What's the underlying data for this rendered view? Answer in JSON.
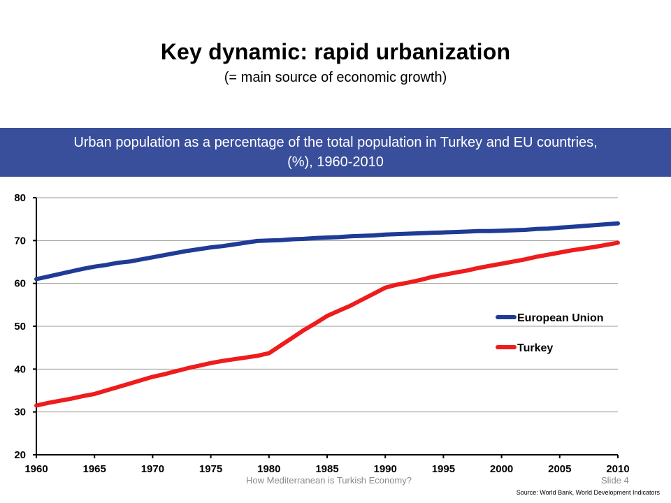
{
  "slide": {
    "title": "Key dynamic: rapid urbanization",
    "subtitle": "(= main source of economic growth)",
    "banner_line1": "Urban population as a percentage of the total population in Turkey and EU countries,",
    "banner_line2": "(%), 1960-2010",
    "footer_text": "How Mediterranean is Turkish Economy?",
    "slide_number": "Slide 4",
    "source": "Source: World Bank, World Development Indicators"
  },
  "chart_data": {
    "type": "line",
    "title": "",
    "xlabel": "",
    "ylabel": "",
    "xlim": [
      1960,
      2010
    ],
    "ylim": [
      20,
      80
    ],
    "y_ticks": [
      20,
      30,
      40,
      50,
      60,
      70,
      80
    ],
    "x_ticks": [
      1960,
      1965,
      1970,
      1975,
      1980,
      1985,
      1990,
      1995,
      2000,
      2005,
      2010
    ],
    "grid": "horizontal",
    "legend_position": "right",
    "x": [
      1960,
      1961,
      1962,
      1963,
      1964,
      1965,
      1966,
      1967,
      1968,
      1969,
      1970,
      1971,
      1972,
      1973,
      1974,
      1975,
      1976,
      1977,
      1978,
      1979,
      1980,
      1981,
      1982,
      1983,
      1984,
      1985,
      1986,
      1987,
      1988,
      1989,
      1990,
      1991,
      1992,
      1993,
      1994,
      1995,
      1996,
      1997,
      1998,
      1999,
      2000,
      2001,
      2002,
      2003,
      2004,
      2005,
      2006,
      2007,
      2008,
      2009,
      2010
    ],
    "series": [
      {
        "name": "European Union",
        "color": "#1f3b96",
        "values": [
          61.0,
          61.6,
          62.2,
          62.8,
          63.4,
          63.9,
          64.3,
          64.8,
          65.1,
          65.6,
          66.1,
          66.6,
          67.1,
          67.6,
          68.0,
          68.4,
          68.7,
          69.1,
          69.5,
          69.9,
          70.0,
          70.1,
          70.3,
          70.4,
          70.6,
          70.7,
          70.8,
          71.0,
          71.1,
          71.2,
          71.4,
          71.5,
          71.6,
          71.7,
          71.8,
          71.9,
          72.0,
          72.1,
          72.2,
          72.2,
          72.3,
          72.4,
          72.5,
          72.7,
          72.8,
          73.0,
          73.2,
          73.4,
          73.6,
          73.8,
          74.0
        ]
      },
      {
        "name": "Turkey",
        "color": "#ee1c1c",
        "values": [
          31.5,
          32.1,
          32.6,
          33.1,
          33.7,
          34.2,
          35.0,
          35.8,
          36.6,
          37.4,
          38.2,
          38.8,
          39.5,
          40.2,
          40.8,
          41.4,
          41.9,
          42.3,
          42.7,
          43.1,
          43.7,
          45.5,
          47.3,
          49.1,
          50.7,
          52.4,
          53.6,
          54.8,
          56.2,
          57.6,
          59.0,
          59.7,
          60.2,
          60.8,
          61.5,
          62.0,
          62.5,
          63.0,
          63.6,
          64.1,
          64.6,
          65.1,
          65.6,
          66.2,
          66.7,
          67.2,
          67.7,
          68.1,
          68.5,
          69.0,
          69.5
        ]
      }
    ]
  }
}
